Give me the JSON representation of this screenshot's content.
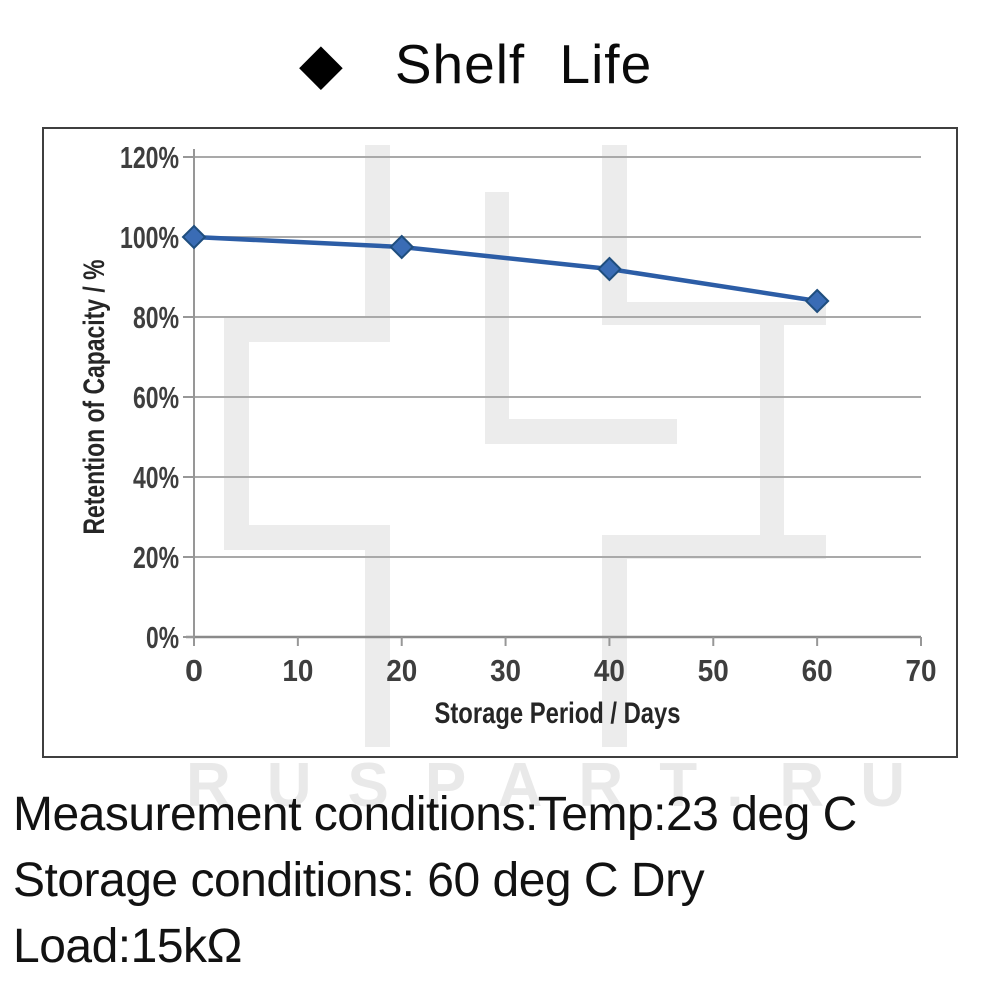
{
  "title": {
    "bullet": "◆",
    "text": "Shelf Life"
  },
  "watermark": {
    "text": "RUSPART.RU"
  },
  "footer": {
    "lines": [
      "Measurement conditions:Temp:23 deg C",
      "Storage conditions: 60 deg C Dry",
      "Load:15kΩ"
    ]
  },
  "chart_data": {
    "type": "line",
    "title": "Shelf Life",
    "x": [
      0,
      20,
      40,
      60
    ],
    "values": [
      100,
      97.5,
      92,
      84
    ],
    "series_name": "Retention of Capacity",
    "xlabel": "Storage Period / Days",
    "ylabel": "Retention of Capacity / %",
    "xlim": [
      0,
      70
    ],
    "ylim": [
      0,
      120
    ],
    "xticks": [
      0,
      10,
      20,
      30,
      40,
      50,
      60,
      70
    ],
    "xtick_labels": [
      "0",
      "10",
      "20",
      "30",
      "40",
      "50",
      "60",
      "70"
    ],
    "yticks": [
      0,
      20,
      40,
      60,
      80,
      100,
      120
    ],
    "ytick_labels": [
      "0%",
      "20%",
      "40%",
      "60%",
      "80%",
      "100%",
      "120%"
    ],
    "grid": "horizontal",
    "legend": "none",
    "line_color": "#2c5da6",
    "marker": "diamond",
    "marker_fill": "#3a6cb5",
    "marker_stroke": "#1f4e7e",
    "grid_color": "#a9a9a9",
    "axis_color": "#8a8a8a"
  }
}
